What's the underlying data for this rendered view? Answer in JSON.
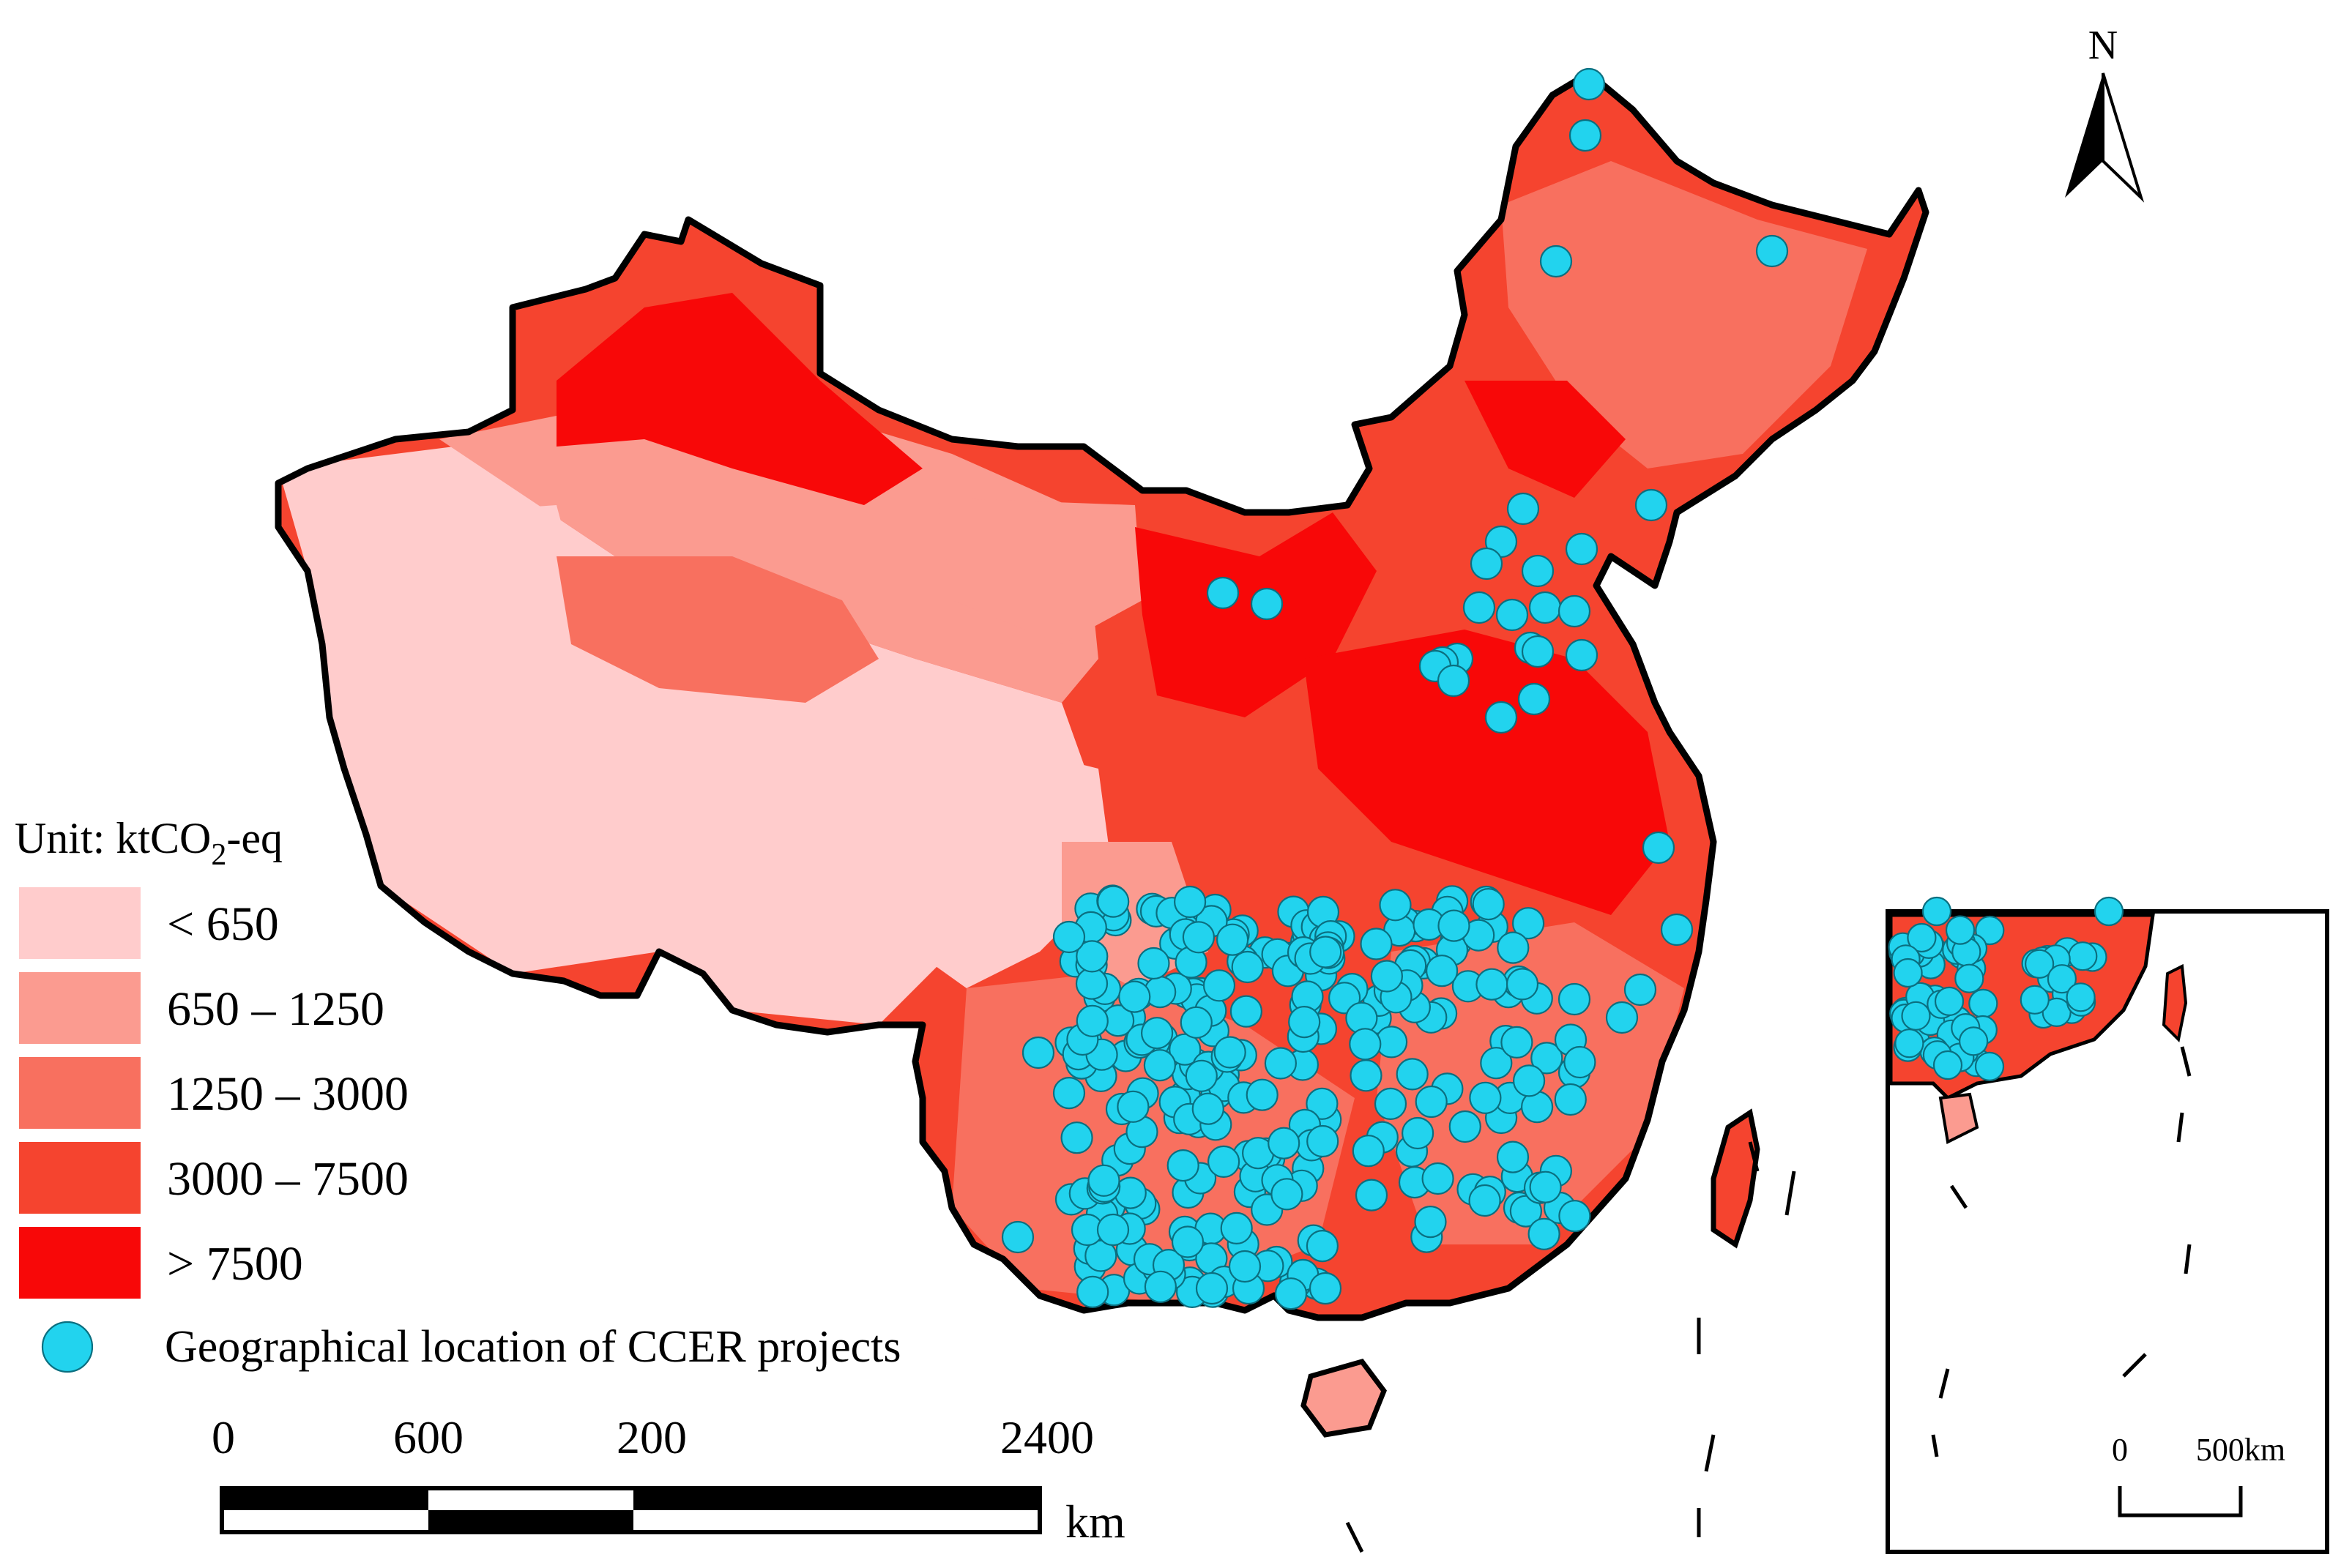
{
  "legend": {
    "unit_label": "Unit: ktCO",
    "unit_sub": "2",
    "unit_suffix": "-eq",
    "classes": [
      {
        "label": "< 650",
        "color": "#ffcccc"
      },
      {
        "label": "650 – 1250",
        "color": "#fb9b90"
      },
      {
        "label": "1250 – 3000",
        "color": "#f8705f"
      },
      {
        "label": "3000 – 7500",
        "color": "#f5442f"
      },
      {
        "label": "> 7500",
        "color": "#f80808"
      }
    ],
    "point_label": "Geographical location of CCER projects",
    "point_color": "#22d3ee"
  },
  "scale_bar": {
    "ticks": [
      "0",
      "600",
      "200",
      "2400"
    ],
    "unit": "km"
  },
  "north_arrow": {
    "label": "N"
  },
  "inset": {
    "scale_ticks": [
      "0",
      "500km"
    ]
  }
}
